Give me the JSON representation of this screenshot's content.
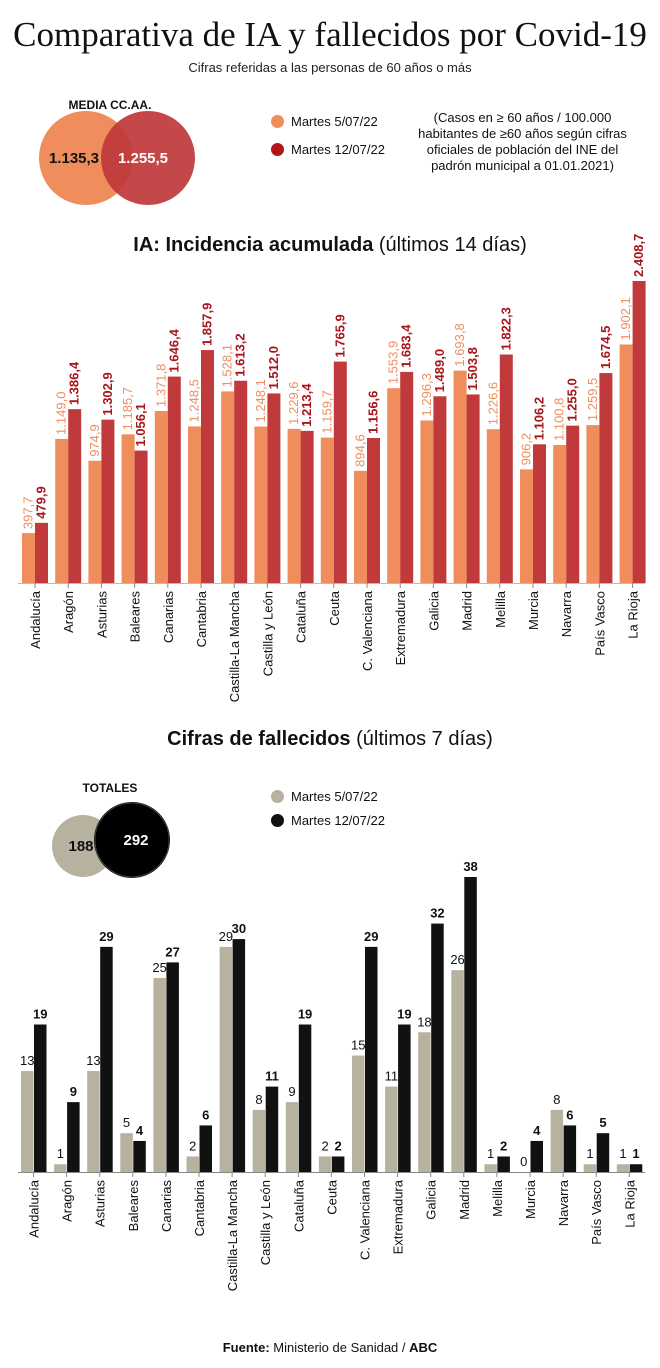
{
  "title": "Comparativa de IA y fallecidos por Covid-19",
  "subtitle": "Cifras referidas a las personas de 60 años o más",
  "legend": {
    "series1": "Martes 5/07/22",
    "series2": "Martes 12/07/22"
  },
  "colors": {
    "ia_s1": "#f08d5c",
    "ia_s2": "#c0393b",
    "ia_label_s2": "#a8151b",
    "f_s1": "#b7b29f",
    "f_s2": "#111111"
  },
  "venn_ia": {
    "title": "MEDIA CC.AA.",
    "value1": "1.135,3",
    "value2": "1.255,5"
  },
  "venn_fallecidos": {
    "title": "TOTALES",
    "value1": "188",
    "value2": "292"
  },
  "note": "(Casos en ≥ 60 años / 100.000 habitantes de ≥60 años según cifras oficiales de población del INE del padrón municipal a 01.01.2021)",
  "ia_section": {
    "title_bold": "IA: Incidencia acumulada",
    "title_suffix": " (últimos 14 días)"
  },
  "fallecidos_section": {
    "title_bold": "Cifras de fallecidos",
    "title_suffix": " (últimos 7 días)"
  },
  "source": {
    "prefix": "Fuente:",
    "text": " Ministerio de Sanidad / ",
    "brand": "ABC"
  },
  "chart_data": [
    {
      "type": "bar",
      "categories": [
        "Andalucía",
        "Aragón",
        "Asturias",
        "Baleares",
        "Canarias",
        "Cantabria",
        "Castilla-La Mancha",
        "Castilla y León",
        "Cataluña",
        "Ceuta",
        "C. Valenciana",
        "Extremadura",
        "Galicia",
        "Madrid",
        "Melilla",
        "Murcia",
        "Navarra",
        "País Vasco",
        "La Rioja"
      ],
      "series": [
        {
          "name": "Martes 5/07/22",
          "values": [
            397.7,
            1149.0,
            974.9,
            1185.7,
            1371.8,
            1248.5,
            1528.1,
            1248.1,
            1229.6,
            1159.7,
            894.6,
            1553.9,
            1296.3,
            1693.8,
            1226.6,
            906.2,
            1100.8,
            1259.5,
            1902.1
          ],
          "labels": [
            "397,7",
            "1.149,0",
            "974,9",
            "1.185,7",
            "1.371,8",
            "1.248,5",
            "1.528,1",
            "1.248,1",
            "1.229,6",
            "1.159,7",
            "894,6",
            "1.553,9",
            "1.296,3",
            "1.693,8",
            "1.226,6",
            "906,2",
            "1.100,8",
            "1.259,5",
            "1.902,1"
          ]
        },
        {
          "name": "Martes 12/07/22",
          "values": [
            479.9,
            1386.4,
            1302.9,
            1056.1,
            1646.4,
            1857.9,
            1613.2,
            1512.0,
            1213.4,
            1765.9,
            1156.6,
            1683.4,
            1489.0,
            1503.8,
            1822.3,
            1106.2,
            1255.0,
            1674.5,
            2408.7
          ],
          "labels": [
            "479,9",
            "1.386,4",
            "1.302,9",
            "1.056,1",
            "1.646,4",
            "1.857,9",
            "1.613,2",
            "1.512,0",
            "1.213,4",
            "1.765,9",
            "1.156,6",
            "1.683,4",
            "1.489,0",
            "1.503,8",
            "1.822,3",
            "1.106,2",
            "1.255,0",
            "1.674,5",
            "2.408,7"
          ]
        }
      ],
      "ylim": [
        0,
        2408.7
      ]
    },
    {
      "type": "bar",
      "categories": [
        "Andalucía",
        "Aragón",
        "Asturias",
        "Baleares",
        "Canarias",
        "Cantabria",
        "Castilla-La Mancha",
        "Castilla y León",
        "Cataluña",
        "Ceuta",
        "C. Valenciana",
        "Extremadura",
        "Galicia",
        "Madrid",
        "Melilla",
        "Murcia",
        "Navarra",
        "País Vasco",
        "La Rioja"
      ],
      "series": [
        {
          "name": "Martes 5/07/22",
          "values": [
            13,
            1,
            13,
            5,
            25,
            2,
            29,
            8,
            9,
            2,
            15,
            11,
            18,
            26,
            1,
            0,
            8,
            1,
            1
          ]
        },
        {
          "name": "Martes 12/07/22",
          "values": [
            19,
            9,
            29,
            4,
            27,
            6,
            30,
            11,
            19,
            2,
            29,
            19,
            32,
            38,
            2,
            4,
            6,
            5,
            1
          ]
        }
      ],
      "ylim": [
        0,
        38
      ]
    }
  ]
}
